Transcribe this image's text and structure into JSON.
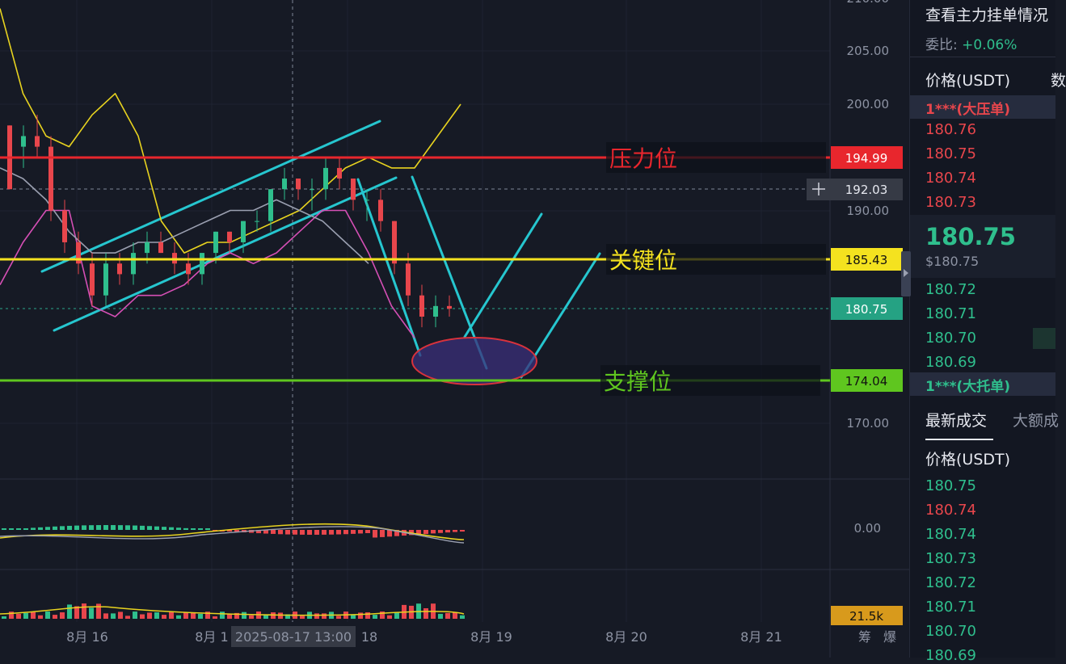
{
  "chart_data": {
    "type": "candlestick",
    "yaxis": {
      "ticks": [
        "205.00",
        "200.00",
        "190.00",
        "170.00"
      ],
      "macd_zero": "0.00",
      "top_partial": "210.00"
    },
    "xaxis": {
      "labels": [
        "8月 16",
        "8月 1",
        "8月 19",
        "8月 20",
        "8月 21"
      ],
      "crosshair_label": "2025-08-17 13:00",
      "partial_18": "18"
    },
    "levels": [
      {
        "name": "压力位",
        "price": "194.99",
        "color": "#e8262d",
        "text_color": "#e8262d"
      },
      {
        "name": "关键位",
        "price": "185.43",
        "color": "#f4e21f",
        "text_color": "#f4e21f"
      },
      {
        "name": "支撑位",
        "price": "174.04",
        "color": "#5fc61f",
        "text_color": "#5fc61f"
      }
    ],
    "crosshair_price": "192.03",
    "last_price_tag": "180.75",
    "volume_tag": "21.5k",
    "bottom_right_tabs": [
      "筹",
      "爆"
    ],
    "candles": [
      [
        0,
        198,
        198,
        192,
        192
      ],
      [
        1,
        196,
        198,
        194,
        197
      ],
      [
        2,
        197,
        199,
        195,
        196
      ],
      [
        3,
        196,
        197,
        189,
        190
      ],
      [
        4,
        190,
        191,
        186,
        187
      ],
      [
        5,
        187,
        188,
        184,
        185
      ],
      [
        6,
        185,
        186,
        181,
        182
      ],
      [
        7,
        182,
        186,
        181,
        185
      ],
      [
        8,
        185,
        186,
        183,
        184
      ],
      [
        9,
        184,
        187,
        183,
        186
      ],
      [
        10,
        186,
        188,
        185,
        187
      ],
      [
        11,
        187,
        188,
        186,
        186
      ],
      [
        12,
        186,
        187,
        184,
        185
      ],
      [
        13,
        185,
        186,
        183,
        184
      ],
      [
        14,
        184,
        186,
        183,
        186
      ],
      [
        15,
        186,
        188,
        185,
        188
      ],
      [
        16,
        188,
        188,
        186,
        187
      ],
      [
        17,
        187,
        189,
        186,
        189
      ],
      [
        18,
        189,
        190,
        188,
        189
      ],
      [
        19,
        189,
        192,
        188,
        192
      ],
      [
        20,
        192,
        194,
        191,
        193
      ],
      [
        21,
        193,
        193,
        191,
        192
      ],
      [
        22,
        192,
        193,
        190,
        192
      ],
      [
        23,
        192,
        195,
        191,
        194
      ],
      [
        24,
        194,
        195,
        192,
        193
      ],
      [
        25,
        193,
        193,
        190,
        191
      ],
      [
        26,
        191,
        192,
        189,
        191
      ],
      [
        27,
        191,
        192,
        188,
        189
      ],
      [
        28,
        189,
        189,
        184,
        185
      ],
      [
        29,
        185,
        186,
        181,
        182
      ],
      [
        30,
        182,
        183,
        179,
        180
      ],
      [
        31,
        180,
        182,
        179,
        181
      ],
      [
        32,
        181,
        182,
        180,
        180.75
      ]
    ],
    "ma_lines": [
      {
        "name": "",
        "color": "#e8d31f",
        "values": [
          [
            0,
            209
          ],
          [
            1,
            201
          ],
          [
            2,
            197
          ],
          [
            3,
            196
          ],
          [
            4,
            199
          ],
          [
            5,
            201
          ],
          [
            6,
            197
          ],
          [
            7,
            189
          ],
          [
            8,
            186
          ],
          [
            9,
            187
          ],
          [
            10,
            187
          ],
          [
            11,
            188
          ],
          [
            12,
            189
          ],
          [
            13,
            190
          ],
          [
            14,
            192
          ],
          [
            15,
            194
          ],
          [
            16,
            195
          ],
          [
            17,
            194
          ],
          [
            18,
            194
          ],
          [
            19,
            197
          ],
          [
            20,
            200
          ]
        ]
      },
      {
        "name": "",
        "color": "#d54fb5",
        "values": [
          [
            0,
            183
          ],
          [
            1,
            187
          ],
          [
            2,
            190
          ],
          [
            3,
            190
          ],
          [
            4,
            181
          ],
          [
            5,
            180
          ],
          [
            6,
            182
          ],
          [
            7,
            182
          ],
          [
            8,
            183
          ],
          [
            9,
            185
          ],
          [
            10,
            186
          ],
          [
            11,
            185
          ],
          [
            12,
            186
          ],
          [
            13,
            188
          ],
          [
            14,
            190
          ],
          [
            15,
            190
          ],
          [
            16,
            186
          ],
          [
            17,
            181
          ],
          [
            18,
            178
          ]
        ]
      },
      {
        "name": "",
        "color": "#9a9fb0",
        "values": [
          [
            0,
            194
          ],
          [
            1,
            193
          ],
          [
            2,
            191
          ],
          [
            3,
            188
          ],
          [
            4,
            186
          ],
          [
            5,
            186
          ],
          [
            6,
            187
          ],
          [
            7,
            187
          ],
          [
            8,
            188
          ],
          [
            9,
            189
          ],
          [
            10,
            190
          ],
          [
            11,
            190
          ],
          [
            12,
            191
          ],
          [
            13,
            190
          ],
          [
            14,
            189
          ],
          [
            15,
            187
          ],
          [
            16,
            185
          ]
        ]
      }
    ]
  },
  "side": {
    "title": "查看主力挂单情况",
    "ratio_label": "委比:",
    "ratio_value": "+0.06%",
    "col_header": "价格(USDT)",
    "col_header2": "数",
    "big_ask": "1***(大压单)",
    "asks": [
      "180.76",
      "180.75",
      "180.74",
      "180.73"
    ],
    "last_price": "180.75",
    "last_price_usd": "$180.75",
    "bids": [
      "180.72",
      "180.71",
      "180.70",
      "180.69"
    ],
    "big_bid": "1***(大托单)",
    "trade_tab_active": "最新成交",
    "trade_tab_other": "大额成",
    "trade_col": "价格(USDT)",
    "trades": [
      {
        "price": "180.75",
        "side": "green"
      },
      {
        "price": "180.74",
        "side": "red"
      },
      {
        "price": "180.74",
        "side": "green"
      },
      {
        "price": "180.73",
        "side": "green"
      },
      {
        "price": "180.72",
        "side": "green"
      },
      {
        "price": "180.71",
        "side": "green"
      },
      {
        "price": "180.70",
        "side": "green"
      },
      {
        "price": "180.69",
        "side": "green"
      }
    ]
  }
}
